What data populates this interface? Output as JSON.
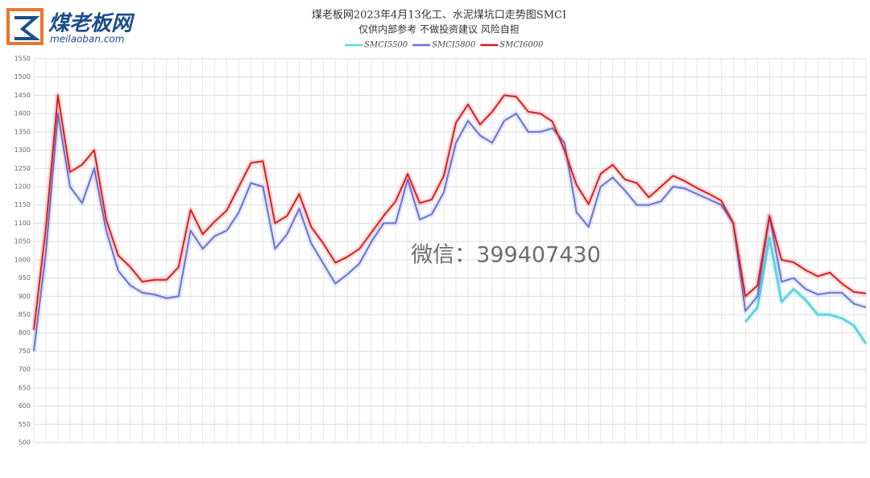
{
  "logo": {
    "name": "煤老板网",
    "url": "meilaoban.com"
  },
  "watermark": "微信：399407430",
  "chart_data": {
    "type": "line",
    "title": "煤老板网2023年4月13化工、水泥煤坑口走势图SMCI",
    "subtitle": "仅供内部参考 不做投资建议 风险自担",
    "categories": [
      null,
      null,
      null,
      null,
      null,
      null,
      null,
      null,
      null,
      null,
      null,
      null,
      null,
      null,
      null,
      null,
      null,
      null,
      null,
      null,
      null,
      null,
      null,
      null,
      null,
      null,
      null,
      null,
      null,
      null,
      null,
      null,
      null,
      null,
      null,
      null,
      null,
      null,
      null,
      null,
      null,
      null,
      null,
      null,
      null,
      null,
      null,
      null,
      null,
      null,
      null,
      null,
      null,
      null,
      null,
      null,
      null,
      null,
      null,
      null,
      null,
      null,
      null,
      null,
      null,
      null,
      null,
      null,
      null,
      null
    ],
    "series": [
      {
        "name": "SMCI5500",
        "color": "#5fd3e0",
        "width": 3,
        "values": [
          null,
          null,
          null,
          null,
          null,
          null,
          null,
          null,
          null,
          null,
          null,
          null,
          null,
          null,
          null,
          null,
          null,
          null,
          null,
          null,
          null,
          null,
          null,
          null,
          null,
          null,
          null,
          null,
          null,
          null,
          null,
          null,
          null,
          null,
          null,
          null,
          null,
          null,
          null,
          null,
          null,
          null,
          null,
          null,
          null,
          null,
          null,
          null,
          null,
          null,
          null,
          null,
          null,
          null,
          null,
          null,
          null,
          null,
          null,
          830,
          870,
          1060,
          885,
          920,
          890,
          850,
          850,
          840,
          820,
          770
        ]
      },
      {
        "name": "SMCI5800",
        "color": "#6673d6",
        "width": 2,
        "values": [
          750,
          1020,
          1400,
          1200,
          1155,
          1250,
          1080,
          970,
          930,
          910,
          905,
          895,
          900,
          1080,
          1030,
          1065,
          1080,
          1130,
          1210,
          1200,
          1030,
          1070,
          1140,
          1045,
          990,
          935,
          960,
          990,
          1050,
          1100,
          1100,
          1220,
          1110,
          1125,
          1185,
          1320,
          1380,
          1340,
          1320,
          1380,
          1400,
          1350,
          1350,
          1360,
          1320,
          1130,
          1090,
          1200,
          1225,
          1190,
          1150,
          1150,
          1160,
          1200,
          1195,
          1180,
          1165,
          1150,
          1100,
          860,
          900,
          1120,
          940,
          950,
          920,
          905,
          910,
          910,
          880,
          870
        ]
      },
      {
        "name": "SMCI6000",
        "color": "#d81e1e",
        "width": 2,
        "values": [
          808,
          1089,
          1450,
          1240,
          1260,
          1300,
          1110,
          1012,
          980,
          940,
          945,
          945,
          980,
          1137,
          1070,
          1105,
          1135,
          1200,
          1265,
          1270,
          1100,
          1120,
          1180,
          1090,
          1045,
          992,
          1008,
          1030,
          1075,
          1120,
          1160,
          1235,
          1155,
          1165,
          1230,
          1375,
          1425,
          1370,
          1405,
          1450,
          1446,
          1405,
          1400,
          1378,
          1300,
          1205,
          1152,
          1235,
          1260,
          1220,
          1210,
          1171,
          1200,
          1230,
          1215,
          1196,
          1180,
          1162,
          1100,
          900,
          930,
          1120,
          1000,
          993,
          972,
          955,
          965,
          935,
          912,
          908
        ]
      }
    ],
    "ylim": [
      500,
      1550
    ],
    "yticks": [
      500,
      550,
      600,
      650,
      700,
      750,
      800,
      850,
      900,
      950,
      1000,
      1050,
      1100,
      1150,
      1200,
      1250,
      1300,
      1350,
      1400,
      1450,
      1500,
      1550
    ],
    "grid": true
  }
}
